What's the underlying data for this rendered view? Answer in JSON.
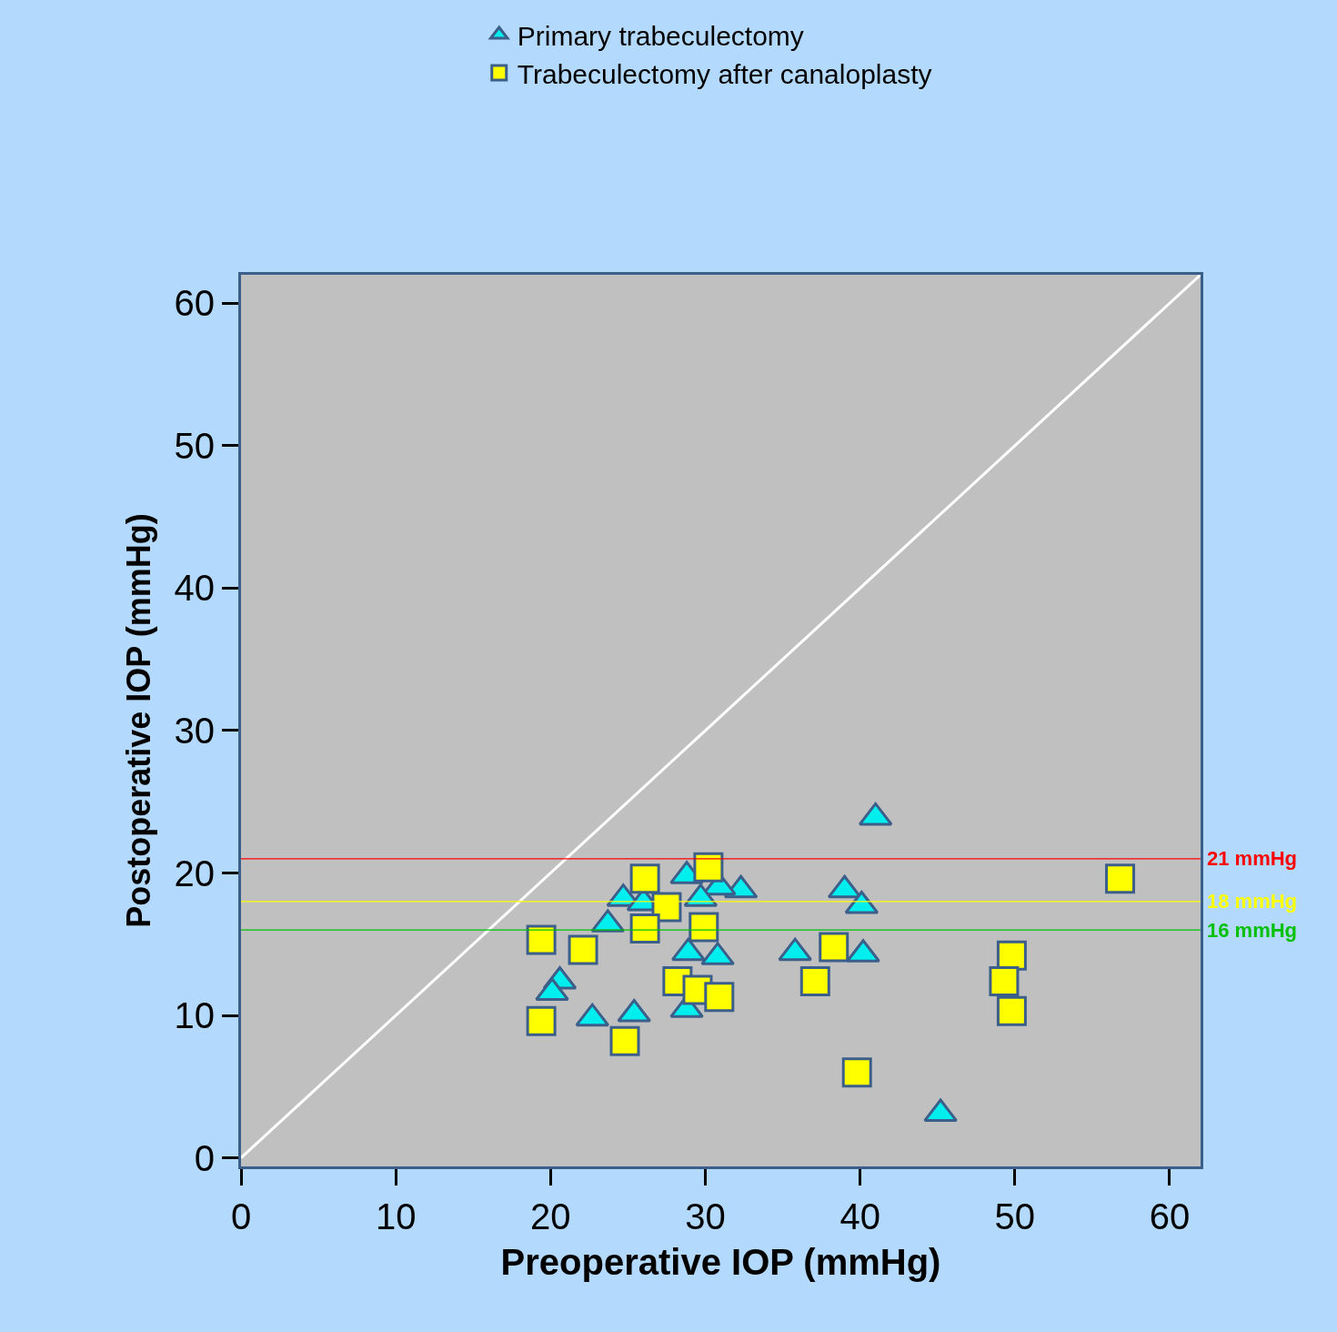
{
  "chart_data": {
    "type": "scatter",
    "xlabel": "Preoperative IOP (mmHg)",
    "ylabel": "Postoperative IOP (mmHg)",
    "xlim": [
      0,
      62
    ],
    "ylim": [
      -0.6,
      62
    ],
    "xticks": [
      0,
      10,
      20,
      30,
      40,
      50,
      60
    ],
    "yticks": [
      0,
      10,
      20,
      30,
      40,
      50,
      60
    ],
    "grid": false,
    "legend": "top",
    "series": [
      {
        "name": "Primary trabeculectomy",
        "color": "#00eeee",
        "marker": "triangle",
        "x": [
          41.0,
          39.0,
          40.1,
          35.8,
          40.2,
          45.2,
          32.3,
          30.9,
          28.8,
          29.7,
          24.7,
          26.0,
          23.7,
          20.6,
          20.1,
          22.7,
          25.4,
          28.9,
          30.8,
          28.8
        ],
        "values": [
          23.9,
          18.8,
          17.7,
          14.4,
          14.3,
          3.1,
          18.8,
          19.0,
          19.8,
          18.2,
          18.2,
          17.9,
          16.4,
          12.4,
          11.6,
          9.8,
          10.1,
          14.4,
          14.1,
          10.4
        ]
      },
      {
        "name": "Trabeculectomy after canaloplasty",
        "color": "#ffff00",
        "marker": "square",
        "x": [
          56.8,
          49.8,
          49.3,
          49.8,
          39.8,
          38.3,
          37.1,
          30.2,
          26.1,
          27.5,
          26.1,
          29.9,
          19.4,
          22.1,
          28.2,
          29.5,
          30.9,
          19.4,
          24.8
        ],
        "values": [
          19.6,
          14.2,
          12.4,
          10.3,
          6.0,
          14.8,
          12.4,
          20.4,
          19.6,
          17.6,
          16.1,
          16.2,
          15.3,
          14.6,
          12.4,
          11.8,
          11.3,
          9.6,
          8.2
        ]
      },
      {
        "type": "line",
        "color": "#ffffff",
        "marker": "none",
        "x": [
          0,
          62
        ],
        "values": [
          0,
          62
        ]
      }
    ],
    "ref_lines": [
      {
        "axis": "y",
        "value": 21,
        "label": "21 mmHg",
        "color": "#ff0000"
      },
      {
        "axis": "y",
        "value": 18,
        "label": "18 mmHg",
        "color": "#ffff00"
      },
      {
        "axis": "y",
        "value": 16,
        "label": "16 mmHg",
        "color": "#00c000"
      }
    ]
  }
}
